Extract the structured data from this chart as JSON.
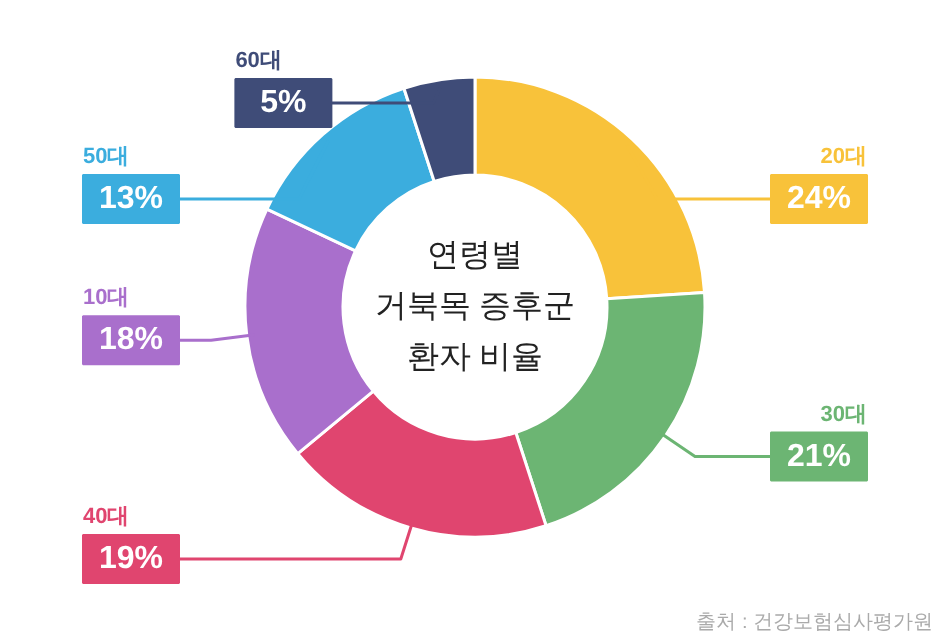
{
  "chart_data": {
    "type": "donut",
    "title": "연령별\n거북목 증후군\n환자 비율",
    "categories": [
      "20대",
      "30대",
      "40대",
      "10대",
      "50대",
      "60대"
    ],
    "values": [
      24,
      21,
      19,
      18,
      13,
      5
    ],
    "value_labels": [
      "24%",
      "21%",
      "19%",
      "18%",
      "13%",
      "5%"
    ],
    "colors": [
      "#f8c23a",
      "#6cb573",
      "#e0456f",
      "#a96fcc",
      "#3badde",
      "#3f4c78"
    ],
    "annotations": [
      "출처 : 건강보험심사평가원"
    ]
  }
}
